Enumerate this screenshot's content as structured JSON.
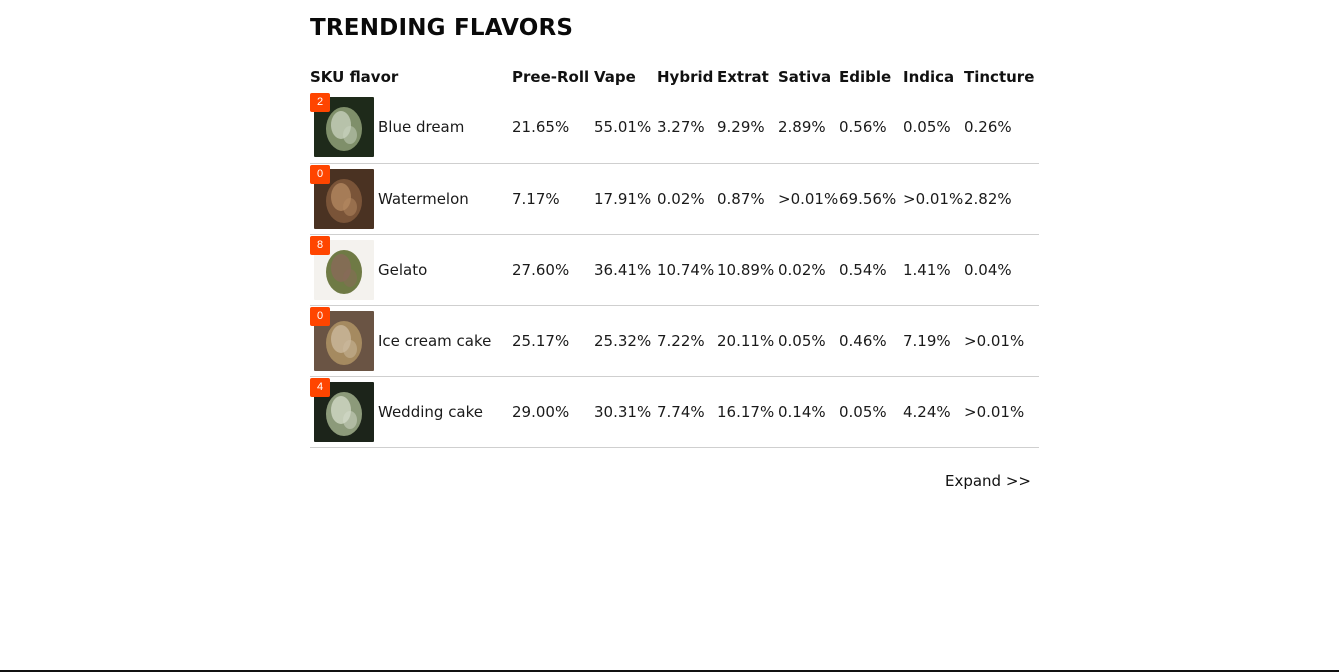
{
  "title": "TRENDING FLAVORS",
  "columns": [
    "SKU flavor",
    "Pree-Roll",
    "Vape",
    "Hybrid",
    "Extrat",
    "Sativa",
    "Edible",
    "Indica",
    "Tincture"
  ],
  "rows": [
    {
      "badge": "2",
      "flavor": "Blue dream",
      "image": "blue-dream-bud-image",
      "values": [
        "21.65%",
        "55.01%",
        "3.27%",
        "9.29%",
        "2.89%",
        "0.56%",
        "0.05%",
        "0.26%"
      ]
    },
    {
      "badge": "0",
      "flavor": "Watermelon",
      "image": "watermelon-bud-image",
      "values": [
        "7.17%",
        "17.91%",
        "0.02%",
        "0.87%",
        ">0.01%",
        "69.56%",
        ">0.01%",
        "2.82%"
      ]
    },
    {
      "badge": "8",
      "flavor": "Gelato",
      "image": "gelato-bud-image",
      "values": [
        "27.60%",
        "36.41%",
        "10.74%",
        "10.89%",
        "0.02%",
        "0.54%",
        "1.41%",
        "0.04%"
      ]
    },
    {
      "badge": "0",
      "flavor": "Ice cream cake",
      "image": "ice-cream-cake-bud-image",
      "values": [
        "25.17%",
        "25.32%",
        "7.22%",
        "20.11%",
        "0.05%",
        "0.46%",
        "7.19%",
        ">0.01%"
      ]
    },
    {
      "badge": "4",
      "flavor": "Wedding cake",
      "image": "wedding-cake-bud-image",
      "values": [
        "29.00%",
        "30.31%",
        "7.74%",
        "16.17%",
        "0.14%",
        "0.05%",
        "4.24%",
        ">0.01%"
      ]
    }
  ],
  "expand_label": "Expand >>",
  "colors": {
    "badge": "#ff4500",
    "divider": "#cfcfcf"
  }
}
